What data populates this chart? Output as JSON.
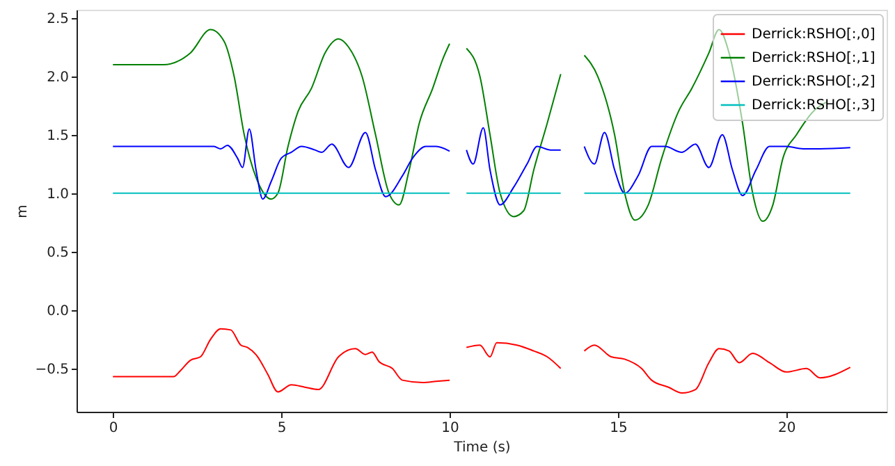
{
  "chart_data": {
    "type": "line",
    "xlabel": "Time (s)",
    "ylabel": "m",
    "xlim": [
      -1.08,
      22.98
    ],
    "ylim": [
      -0.87,
      2.57
    ],
    "xticks": [
      0,
      5,
      10,
      15,
      20
    ],
    "yticks": [
      {
        "value": -0.5,
        "label": "−0.5"
      },
      {
        "value": 0,
        "label": "0.0"
      },
      {
        "value": 0.5,
        "label": "0.5"
      },
      {
        "value": 1,
        "label": "1.0"
      },
      {
        "value": 1.5,
        "label": "1.5"
      },
      {
        "value": 2,
        "label": "2.0"
      },
      {
        "value": 2.5,
        "label": "2.5"
      }
    ],
    "grid": false,
    "legend": "top right",
    "line_style": "solid",
    "marker": "none",
    "series": [
      {
        "name": "Derrick:RSHO[:,0]",
        "color": "#ff0000",
        "x": [
          0,
          1.8,
          2.0,
          2.3,
          2.6,
          2.9,
          3.2,
          3.5,
          3.8,
          4.0,
          4.3,
          4.6,
          4.9,
          5.3,
          5.7,
          6.1,
          6.7,
          7.2,
          7.5,
          7.7,
          7.9,
          8.3,
          8.6,
          9.2,
          9.6,
          10.0,
          10.25,
          10.5,
          10.9,
          11.2,
          11.4,
          12.0,
          12.5,
          12.9,
          13.3,
          13.65,
          14.0,
          14.3,
          14.8,
          15.2,
          15.7,
          16.0,
          16.5,
          16.9,
          17.3,
          17.7,
          18.0,
          18.3,
          18.6,
          19.0,
          19.5,
          20.0,
          20.6,
          21.0,
          21.9
        ],
        "values": [
          -0.57,
          -0.57,
          -0.52,
          -0.43,
          -0.4,
          -0.25,
          -0.16,
          -0.17,
          -0.3,
          -0.32,
          -0.4,
          -0.55,
          -0.7,
          -0.64,
          -0.66,
          -0.68,
          -0.4,
          -0.33,
          -0.38,
          -0.36,
          -0.44,
          -0.5,
          -0.6,
          -0.62,
          -0.61,
          -0.6,
          null,
          -0.32,
          -0.3,
          -0.4,
          -0.28,
          -0.3,
          -0.35,
          -0.4,
          -0.5,
          null,
          -0.35,
          -0.3,
          -0.4,
          -0.42,
          -0.5,
          -0.6,
          -0.66,
          -0.71,
          -0.68,
          -0.45,
          -0.33,
          -0.35,
          -0.45,
          -0.37,
          -0.45,
          -0.53,
          -0.5,
          -0.58,
          -0.49
        ]
      },
      {
        "name": "Derrick:RSHO[:,1]",
        "color": "#008000",
        "x": [
          0,
          1.5,
          2.3,
          2.9,
          3.3,
          3.6,
          3.9,
          4.3,
          4.7,
          4.9,
          5.2,
          5.5,
          5.9,
          6.3,
          6.7,
          7.0,
          7.4,
          7.8,
          8.2,
          8.5,
          8.8,
          9.1,
          9.5,
          9.8,
          10.0,
          10.25,
          10.5,
          10.9,
          11.2,
          11.5,
          11.9,
          12.2,
          12.5,
          12.9,
          13.3,
          13.65,
          14.0,
          14.4,
          14.9,
          15.2,
          15.5,
          15.9,
          16.3,
          16.8,
          17.2,
          17.7,
          18.0,
          18.3,
          18.7,
          19.0,
          19.3,
          19.6,
          19.9,
          20.3,
          20.8,
          21.2
        ],
        "values": [
          2.1,
          2.1,
          2.2,
          2.4,
          2.3,
          2.0,
          1.5,
          1.1,
          0.95,
          1.0,
          1.4,
          1.7,
          1.9,
          2.2,
          2.32,
          2.25,
          2.0,
          1.5,
          1.0,
          0.9,
          1.2,
          1.6,
          1.9,
          2.15,
          2.28,
          null,
          2.24,
          2.0,
          1.5,
          1.0,
          0.8,
          0.85,
          1.2,
          1.6,
          2.02,
          null,
          2.18,
          2.0,
          1.5,
          1.0,
          0.77,
          0.9,
          1.3,
          1.7,
          1.9,
          2.2,
          2.4,
          2.2,
          1.6,
          1.0,
          0.76,
          0.9,
          1.3,
          1.5,
          1.7,
          1.78
        ]
      },
      {
        "name": "Derrick:RSHO[:,2]",
        "color": "#0000ff",
        "x": [
          0,
          3.0,
          3.2,
          3.4,
          3.7,
          3.85,
          4.05,
          4.25,
          4.45,
          4.7,
          5.0,
          5.3,
          5.6,
          6.0,
          6.2,
          6.5,
          7.0,
          7.5,
          7.8,
          8.1,
          8.6,
          8.9,
          9.3,
          9.6,
          10.0,
          10.25,
          10.5,
          10.7,
          11.0,
          11.2,
          11.5,
          11.9,
          12.3,
          12.6,
          13.0,
          13.3,
          13.65,
          14.0,
          14.3,
          14.6,
          14.9,
          15.2,
          15.6,
          16.0,
          16.4,
          16.9,
          17.3,
          17.7,
          18.1,
          18.4,
          18.7,
          19.1,
          19.5,
          20.0,
          20.5,
          21.0,
          21.9
        ],
        "values": [
          1.4,
          1.4,
          1.38,
          1.41,
          1.3,
          1.22,
          1.55,
          1.2,
          0.95,
          1.1,
          1.3,
          1.35,
          1.4,
          1.37,
          1.35,
          1.42,
          1.22,
          1.52,
          1.2,
          0.97,
          1.15,
          1.3,
          1.4,
          1.4,
          1.36,
          null,
          1.37,
          1.25,
          1.56,
          1.2,
          0.9,
          1.05,
          1.25,
          1.4,
          1.37,
          1.37,
          null,
          1.4,
          1.25,
          1.52,
          1.2,
          1.0,
          1.15,
          1.4,
          1.4,
          1.35,
          1.42,
          1.22,
          1.5,
          1.2,
          0.98,
          1.2,
          1.4,
          1.4,
          1.38,
          1.38,
          1.39
        ]
      },
      {
        "name": "Derrick:RSHO[:,3]",
        "color": "#00bfbf",
        "x": [
          0,
          10.0,
          10.25,
          10.5,
          13.3,
          13.65,
          14.0,
          21.9
        ],
        "values": [
          1.0,
          1.0,
          null,
          1.0,
          1.0,
          null,
          1.0,
          1.0
        ]
      }
    ]
  }
}
